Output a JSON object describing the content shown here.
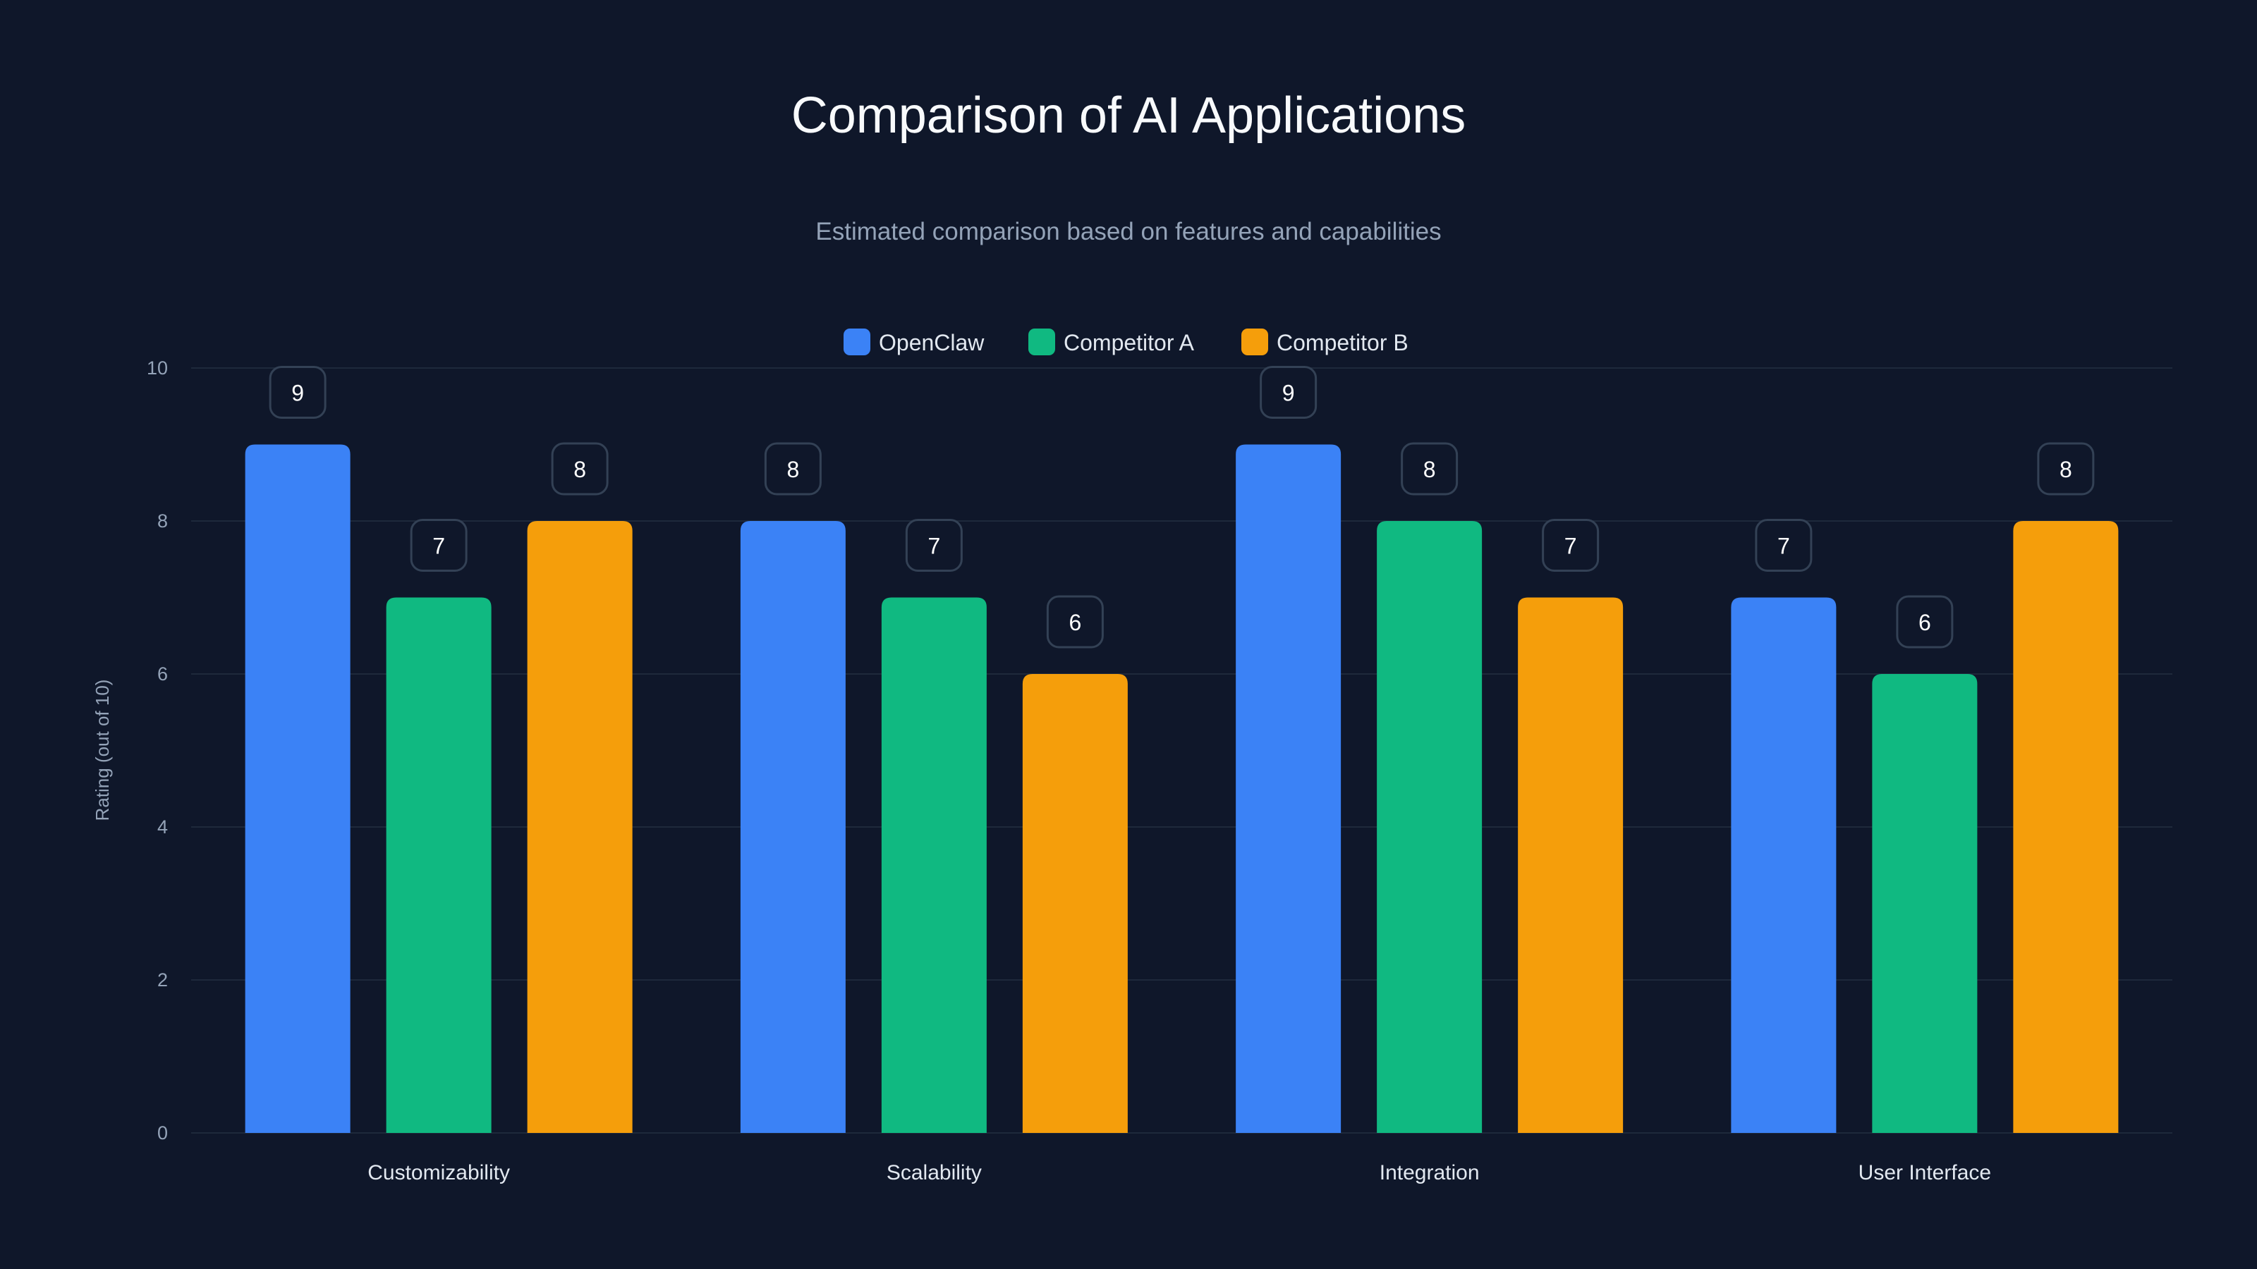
{
  "chart_data": {
    "type": "bar",
    "title": "Comparison of AI Applications",
    "subtitle": "Estimated comparison based on features and capabilities",
    "xlabel": "",
    "ylabel": "Rating (out of 10)",
    "ylim": [
      0,
      10
    ],
    "yticks": [
      "0",
      "2",
      "4",
      "6",
      "8",
      "10"
    ],
    "grid": true,
    "legend_position": "top-center",
    "categories": [
      "Customizability",
      "Scalability",
      "Integration",
      "User Interface"
    ],
    "series": [
      {
        "name": "OpenClaw",
        "color": "#3b82f6",
        "values": [
          9,
          8,
          9,
          7
        ]
      },
      {
        "name": "Competitor A",
        "color": "#10b981",
        "values": [
          7,
          7,
          8,
          6
        ]
      },
      {
        "name": "Competitor B",
        "color": "#f59e0b",
        "values": [
          8,
          6,
          7,
          8
        ]
      }
    ]
  }
}
